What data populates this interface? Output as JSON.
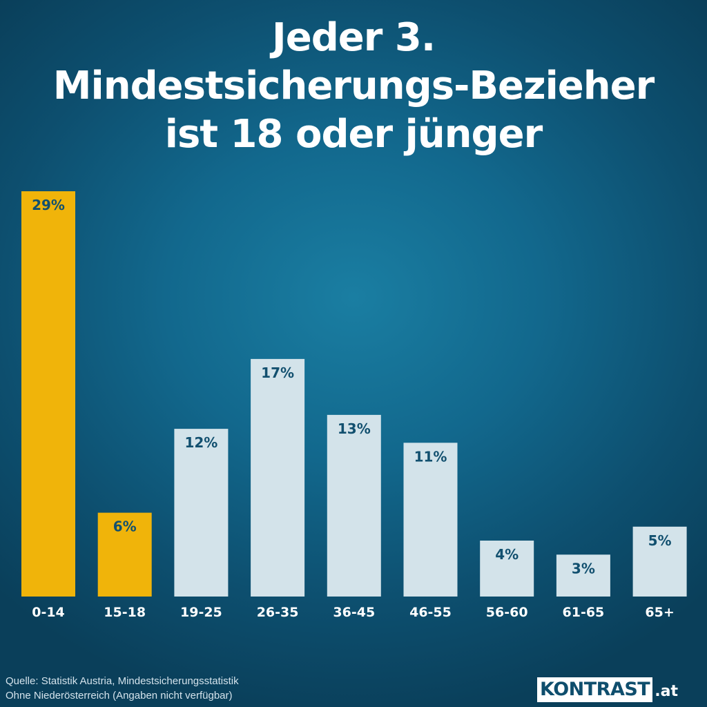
{
  "title_lines": [
    "Jeder 3.",
    "Mindestsicherungs-Bezieher",
    "ist 18 oder jünger"
  ],
  "chart_data": {
    "type": "bar",
    "categories": [
      "0-14",
      "15-18",
      "19-25",
      "26-35",
      "36-45",
      "46-55",
      "56-60",
      "61-65",
      "65+"
    ],
    "values": [
      29,
      6,
      12,
      17,
      13,
      11,
      4,
      3,
      5
    ],
    "value_labels": [
      "29%",
      "6%",
      "12%",
      "17%",
      "13%",
      "11%",
      "4%",
      "3%",
      "5%"
    ],
    "highlighted_categories": [
      "0-14",
      "15-18"
    ],
    "ylim": [
      0,
      29
    ],
    "grid": false,
    "colors": {
      "highlight_bar": "#f0b40a",
      "default_bar": "#d3e3ea",
      "value_label": "#12506f",
      "category_label": "#ffffff"
    }
  },
  "footer": {
    "source_line1": "Quelle: Statistik Austria, Mindestsicherungsstatistik",
    "source_line2": "Ohne Niederösterreich (Angaben nicht verfügbar)"
  },
  "logo": {
    "main": "KONTRAST",
    "suffix": ".at"
  }
}
